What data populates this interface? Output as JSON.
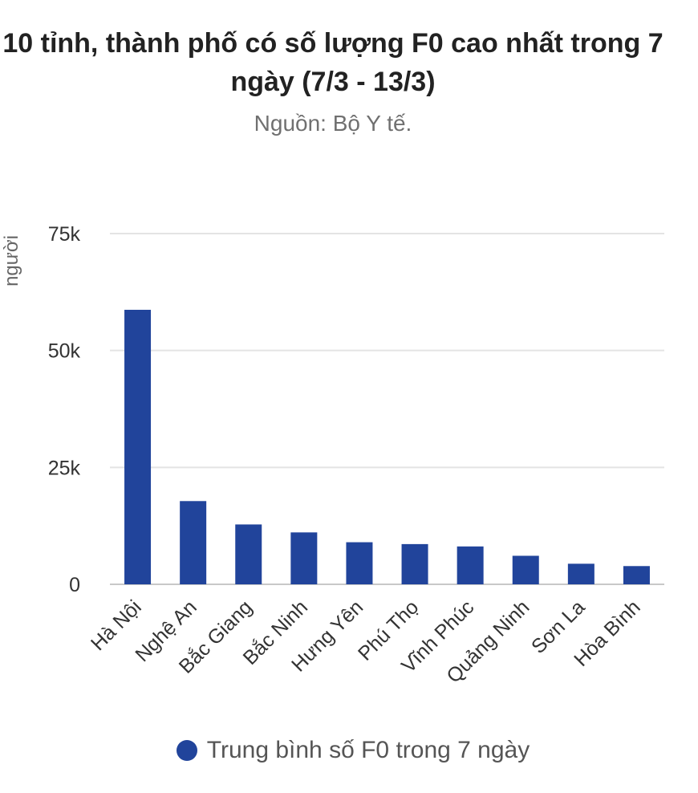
{
  "chart_data": {
    "type": "bar",
    "title": "10 tỉnh, thành phố có số lượng F0 cao nhất trong 7 ngày (7/3 - 13/3)",
    "subtitle": "Nguồn: Bộ Y tế.",
    "ylabel": "người",
    "ylim": [
      0,
      75000
    ],
    "yticks": [
      {
        "value": 0,
        "label": "0"
      },
      {
        "value": 25000,
        "label": "25k"
      },
      {
        "value": 50000,
        "label": "50k"
      },
      {
        "value": 75000,
        "label": "75k"
      }
    ],
    "categories": [
      "Hà Nội",
      "Nghệ An",
      "Bắc Giang",
      "Bắc Ninh",
      "Hưng Yên",
      "Phú Thọ",
      "Vĩnh Phúc",
      "Quảng Ninh",
      "Sơn La",
      "Hòa Bình"
    ],
    "series": [
      {
        "name": "Trung bình số F0 trong 7 ngày",
        "color": "#21449b",
        "values": [
          58700,
          17800,
          12800,
          11100,
          9000,
          8600,
          8100,
          6100,
          4400,
          3900
        ]
      }
    ],
    "grid": true,
    "legend_position": "bottom"
  }
}
